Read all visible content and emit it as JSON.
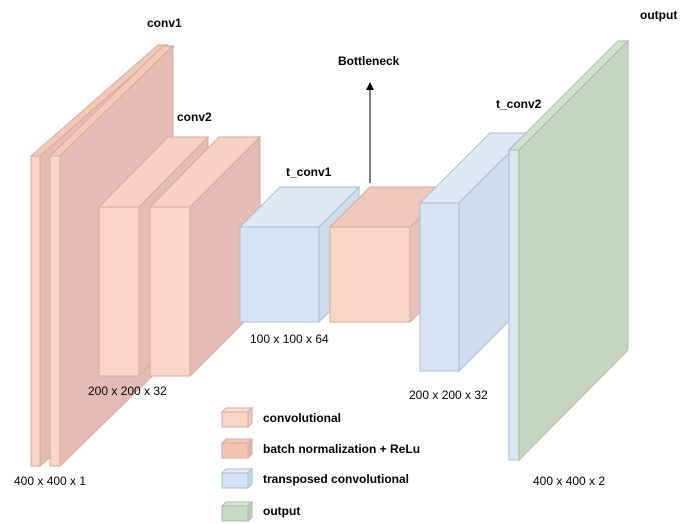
{
  "labels": {
    "conv1": "conv1",
    "conv2": "conv2",
    "t_conv1": "t_conv1",
    "t_conv2": "t_conv2",
    "bottleneck": "Bottleneck",
    "output": "output",
    "dim_input": "400 x 400 x 1",
    "dim_conv2": "200 x 200 x 32",
    "dim_t_conv1": "100 x 100 x 64",
    "dim_t_conv2": "200 x 200 x 32",
    "dim_output": "400 x 400 x 2"
  },
  "legend": {
    "items": [
      {
        "label": "convolutional",
        "color": "#f9d5c5"
      },
      {
        "label": "batch normalization + ReLu",
        "color": "#f2c3b3"
      },
      {
        "label": "transposed convolutional",
        "color": "#d6e4f3"
      },
      {
        "label": "output",
        "color": "#c9dac6"
      }
    ]
  },
  "colors": {
    "convolutional": "#f9d5c5",
    "batchnorm_relu": "#e8c0b8",
    "transposed": "#d6e4f3",
    "output": "#c4d6c0"
  }
}
